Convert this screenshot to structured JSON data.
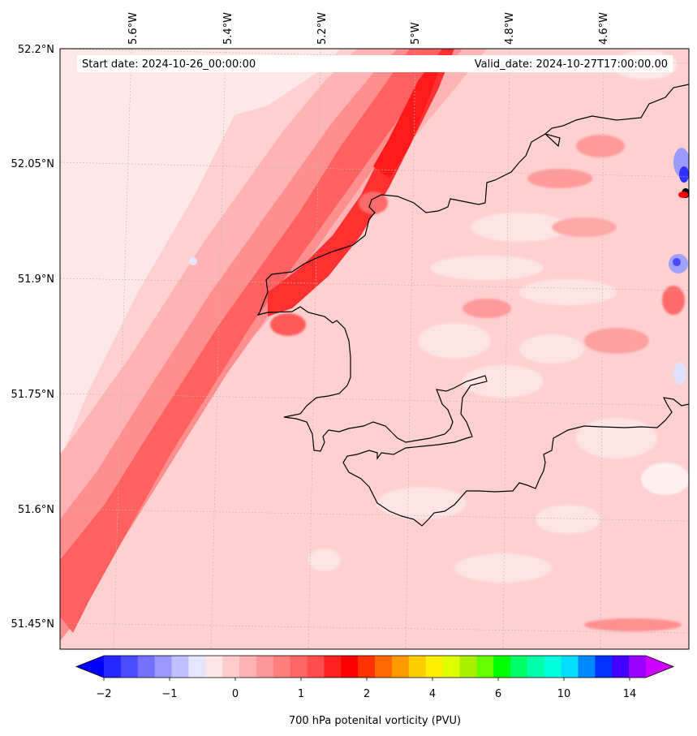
{
  "header": {
    "start_date": "Start date: 2024-10-26_00:00:00",
    "valid_date": "Valid_date: 2024-10-27T17:00:00.00"
  },
  "map": {
    "lon_labels": [
      "5.6°W",
      "5.4°W",
      "5.2°W",
      "5°W",
      "4.8°W",
      "4.6°W"
    ],
    "lat_labels": [
      "52.2°N",
      "52.05°N",
      "51.9°N",
      "51.75°N",
      "51.6°N",
      "51.45°N"
    ],
    "field": "700 hPa potential vorticity",
    "colors": {
      "coastline": "#000000",
      "pv_band_max": "#ff1a1a",
      "pv_low": "#fde6e6",
      "pv_negative": "#3333ff"
    }
  },
  "colorbar": {
    "title": "700 hPa potenital vorticity (PVU)",
    "tick_labels": [
      "−2",
      "−1",
      "0",
      "1",
      "2",
      "4",
      "6",
      "10",
      "14"
    ],
    "colors": [
      "#0000ff",
      "#2626ff",
      "#4c4cff",
      "#7272ff",
      "#9898ff",
      "#bfbfff",
      "#e5e5ff",
      "#ffe5e5",
      "#ffcccc",
      "#ffb2b2",
      "#ff9999",
      "#ff7f7f",
      "#ff6666",
      "#ff4c4c",
      "#ff2020",
      "#ff0000",
      "#ff3300",
      "#ff6600",
      "#ff9900",
      "#ffcc00",
      "#ffee00",
      "#ddff00",
      "#aaee00",
      "#66ff00",
      "#00ff00",
      "#00ff66",
      "#00ffaa",
      "#00ffdd",
      "#00ddff",
      "#0088ff",
      "#0033ff",
      "#4400ff",
      "#9900ff",
      "#cc00ff"
    ]
  }
}
